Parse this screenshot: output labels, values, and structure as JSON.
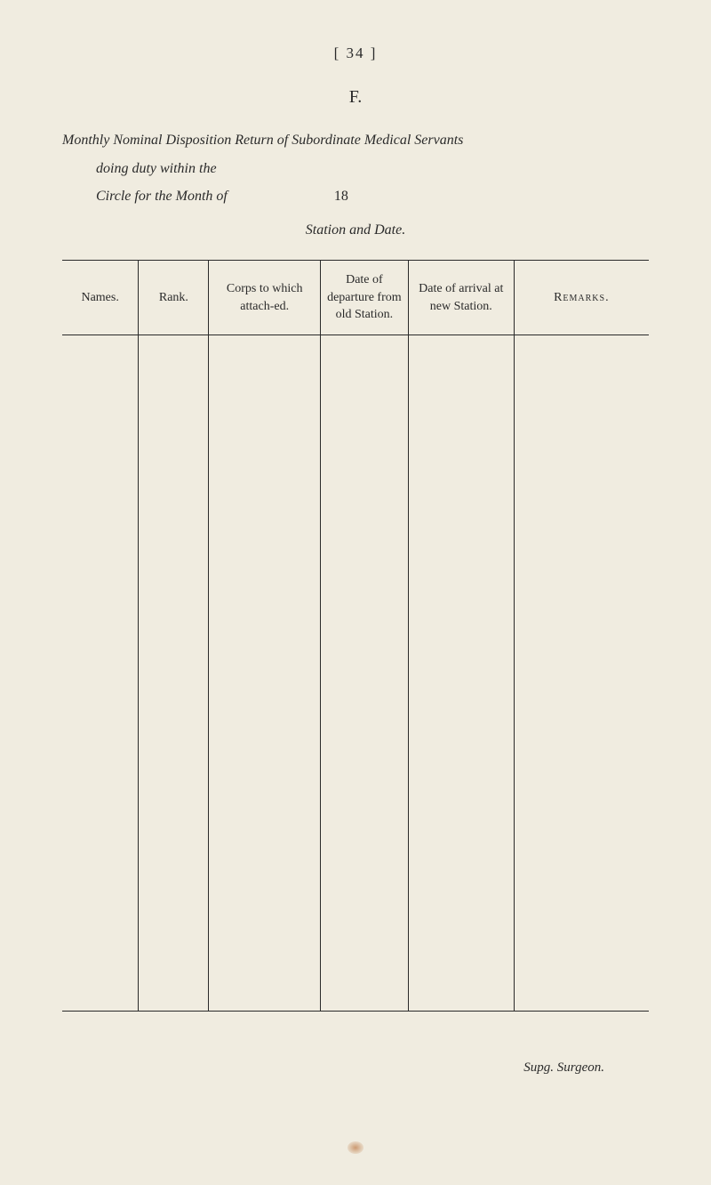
{
  "page_number": "[  34  ]",
  "section_letter": "F.",
  "title": {
    "line1_italic": "Monthly Nominal Disposition Return of Subordinate Medical Servants",
    "line2_prefix": "doing duty within the",
    "line3_prefix": "Circle for the Month of",
    "year": "18"
  },
  "station_date": "Station and Date.",
  "table": {
    "columns": [
      "Names.",
      "Rank.",
      "Corps to which attach-ed.",
      "Date of departure from old Station.",
      "Date of arrival at new Station.",
      "Remarks."
    ]
  },
  "footer": "Supg. Surgeon."
}
